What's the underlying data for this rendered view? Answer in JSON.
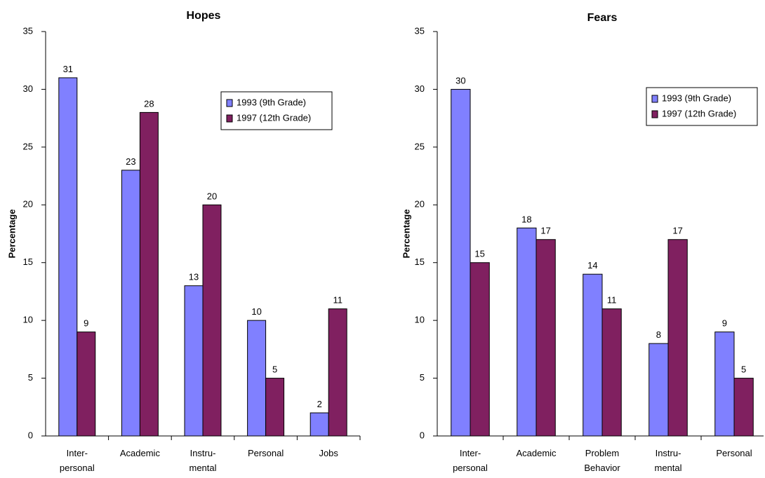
{
  "chart_data": [
    {
      "type": "bar",
      "title": "Hopes",
      "ylabel": "Percentage",
      "xlabel": "",
      "ylim": [
        0,
        35
      ],
      "yticks": [
        0,
        5,
        10,
        15,
        20,
        25,
        30,
        35
      ],
      "categories": [
        [
          "Inter-",
          "personal"
        ],
        [
          "Academic"
        ],
        [
          "Instru-",
          "mental"
        ],
        [
          "Personal"
        ],
        [
          "Jobs"
        ]
      ],
      "series": [
        {
          "name": "1993 (9th Grade)",
          "values": [
            31,
            23,
            13,
            10,
            2
          ],
          "color": "#8080ff"
        },
        {
          "name": "1997 (12th Grade)",
          "values": [
            9,
            28,
            20,
            5,
            11
          ],
          "color": "#802060"
        }
      ],
      "legend": "top-right",
      "grid": false
    },
    {
      "type": "bar",
      "title": "Fears",
      "ylabel": "Percentage",
      "xlabel": "",
      "ylim": [
        0,
        35
      ],
      "yticks": [
        0,
        5,
        10,
        15,
        20,
        25,
        30,
        35
      ],
      "categories": [
        [
          "Inter-",
          "personal"
        ],
        [
          "Academic"
        ],
        [
          "Problem",
          "Behavior"
        ],
        [
          "Instru-",
          "mental"
        ],
        [
          "Personal"
        ]
      ],
      "series": [
        {
          "name": "1993 (9th Grade)",
          "values": [
            30,
            18,
            14,
            8,
            9
          ],
          "color": "#8080ff"
        },
        {
          "name": "1997 (12th Grade)",
          "values": [
            15,
            17,
            11,
            17,
            5
          ],
          "color": "#802060"
        }
      ],
      "legend": "top-right",
      "grid": false
    }
  ]
}
